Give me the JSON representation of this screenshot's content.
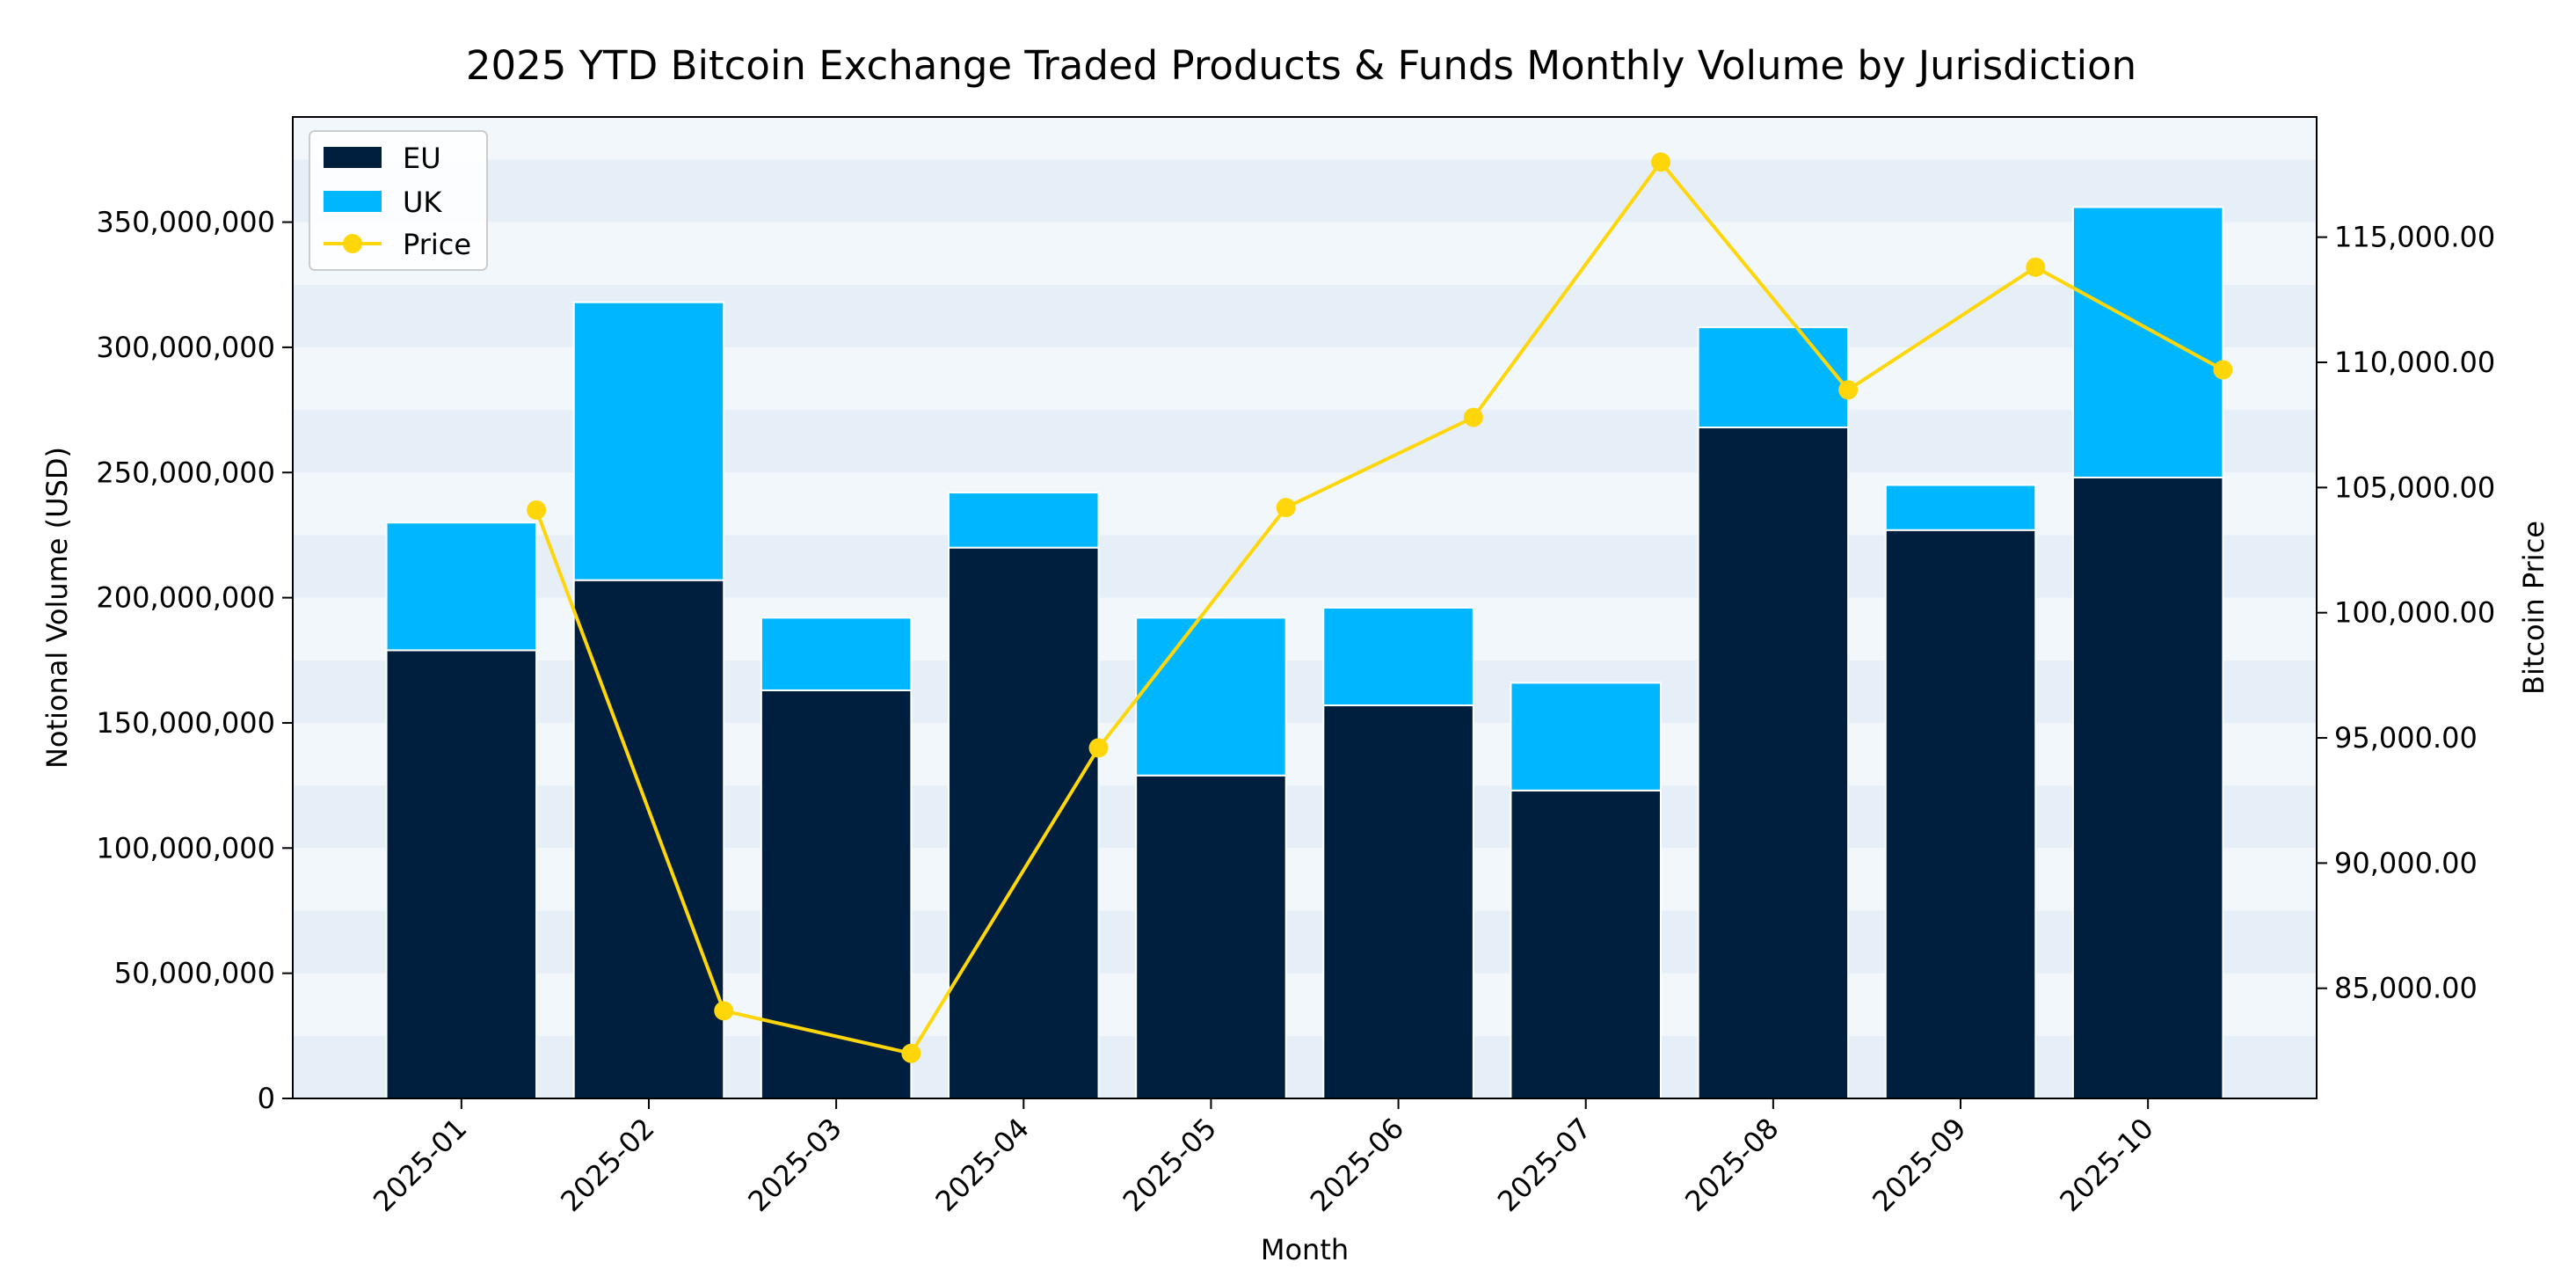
{
  "chart_data": {
    "type": "bar",
    "stacked": true,
    "title": "2025 YTD Bitcoin Exchange Traded Products & Funds Monthly Volume by Jurisdiction",
    "xlabel": "Month",
    "ylabel": "Notional Volume (USD)",
    "y2label": "Bitcoin Price",
    "categories": [
      "2025-01",
      "2025-02",
      "2025-03",
      "2025-04",
      "2025-05",
      "2025-06",
      "2025-07",
      "2025-08",
      "2025-09",
      "2025-10"
    ],
    "series": [
      {
        "name": "EU",
        "color": "#001f3f",
        "values": [
          179000000,
          207000000,
          163000000,
          220000000,
          129000000,
          157000000,
          123000000,
          268000000,
          227000000,
          248000000
        ]
      },
      {
        "name": "UK",
        "color": "#00b7ff",
        "values": [
          51000000,
          111000000,
          29000000,
          22000000,
          63000000,
          39000000,
          43000000,
          40000000,
          18000000,
          108000000
        ]
      }
    ],
    "line_series": {
      "name": "Price",
      "color": "#ffd60a",
      "axis": "right",
      "values": [
        104100,
        84100,
        82400,
        94600,
        104200,
        107800,
        118000,
        108900,
        113800,
        109700
      ]
    },
    "ylim": [
      0,
      392000000
    ],
    "y2lim": [
      80600,
      119800
    ],
    "yticks": [
      0,
      50000000,
      100000000,
      150000000,
      200000000,
      250000000,
      300000000,
      350000000
    ],
    "ytick_labels": [
      "0",
      "50,000,000",
      "100,000,000",
      "150,000,000",
      "200,000,000",
      "250,000,000",
      "300,000,000",
      "350,000,000"
    ],
    "y2ticks": [
      85000,
      90000,
      95000,
      100000,
      105000,
      110000,
      115000
    ],
    "y2tick_labels": [
      "85,000.00",
      "90,000.00",
      "95,000.00",
      "100,000.00",
      "105,000.00",
      "110,000.00",
      "115,000.00"
    ],
    "legend": {
      "position": "top-left",
      "entries": [
        "EU",
        "UK",
        "Price"
      ]
    },
    "background_bands": [
      "#f2f7fc",
      "#e6eff8"
    ]
  }
}
